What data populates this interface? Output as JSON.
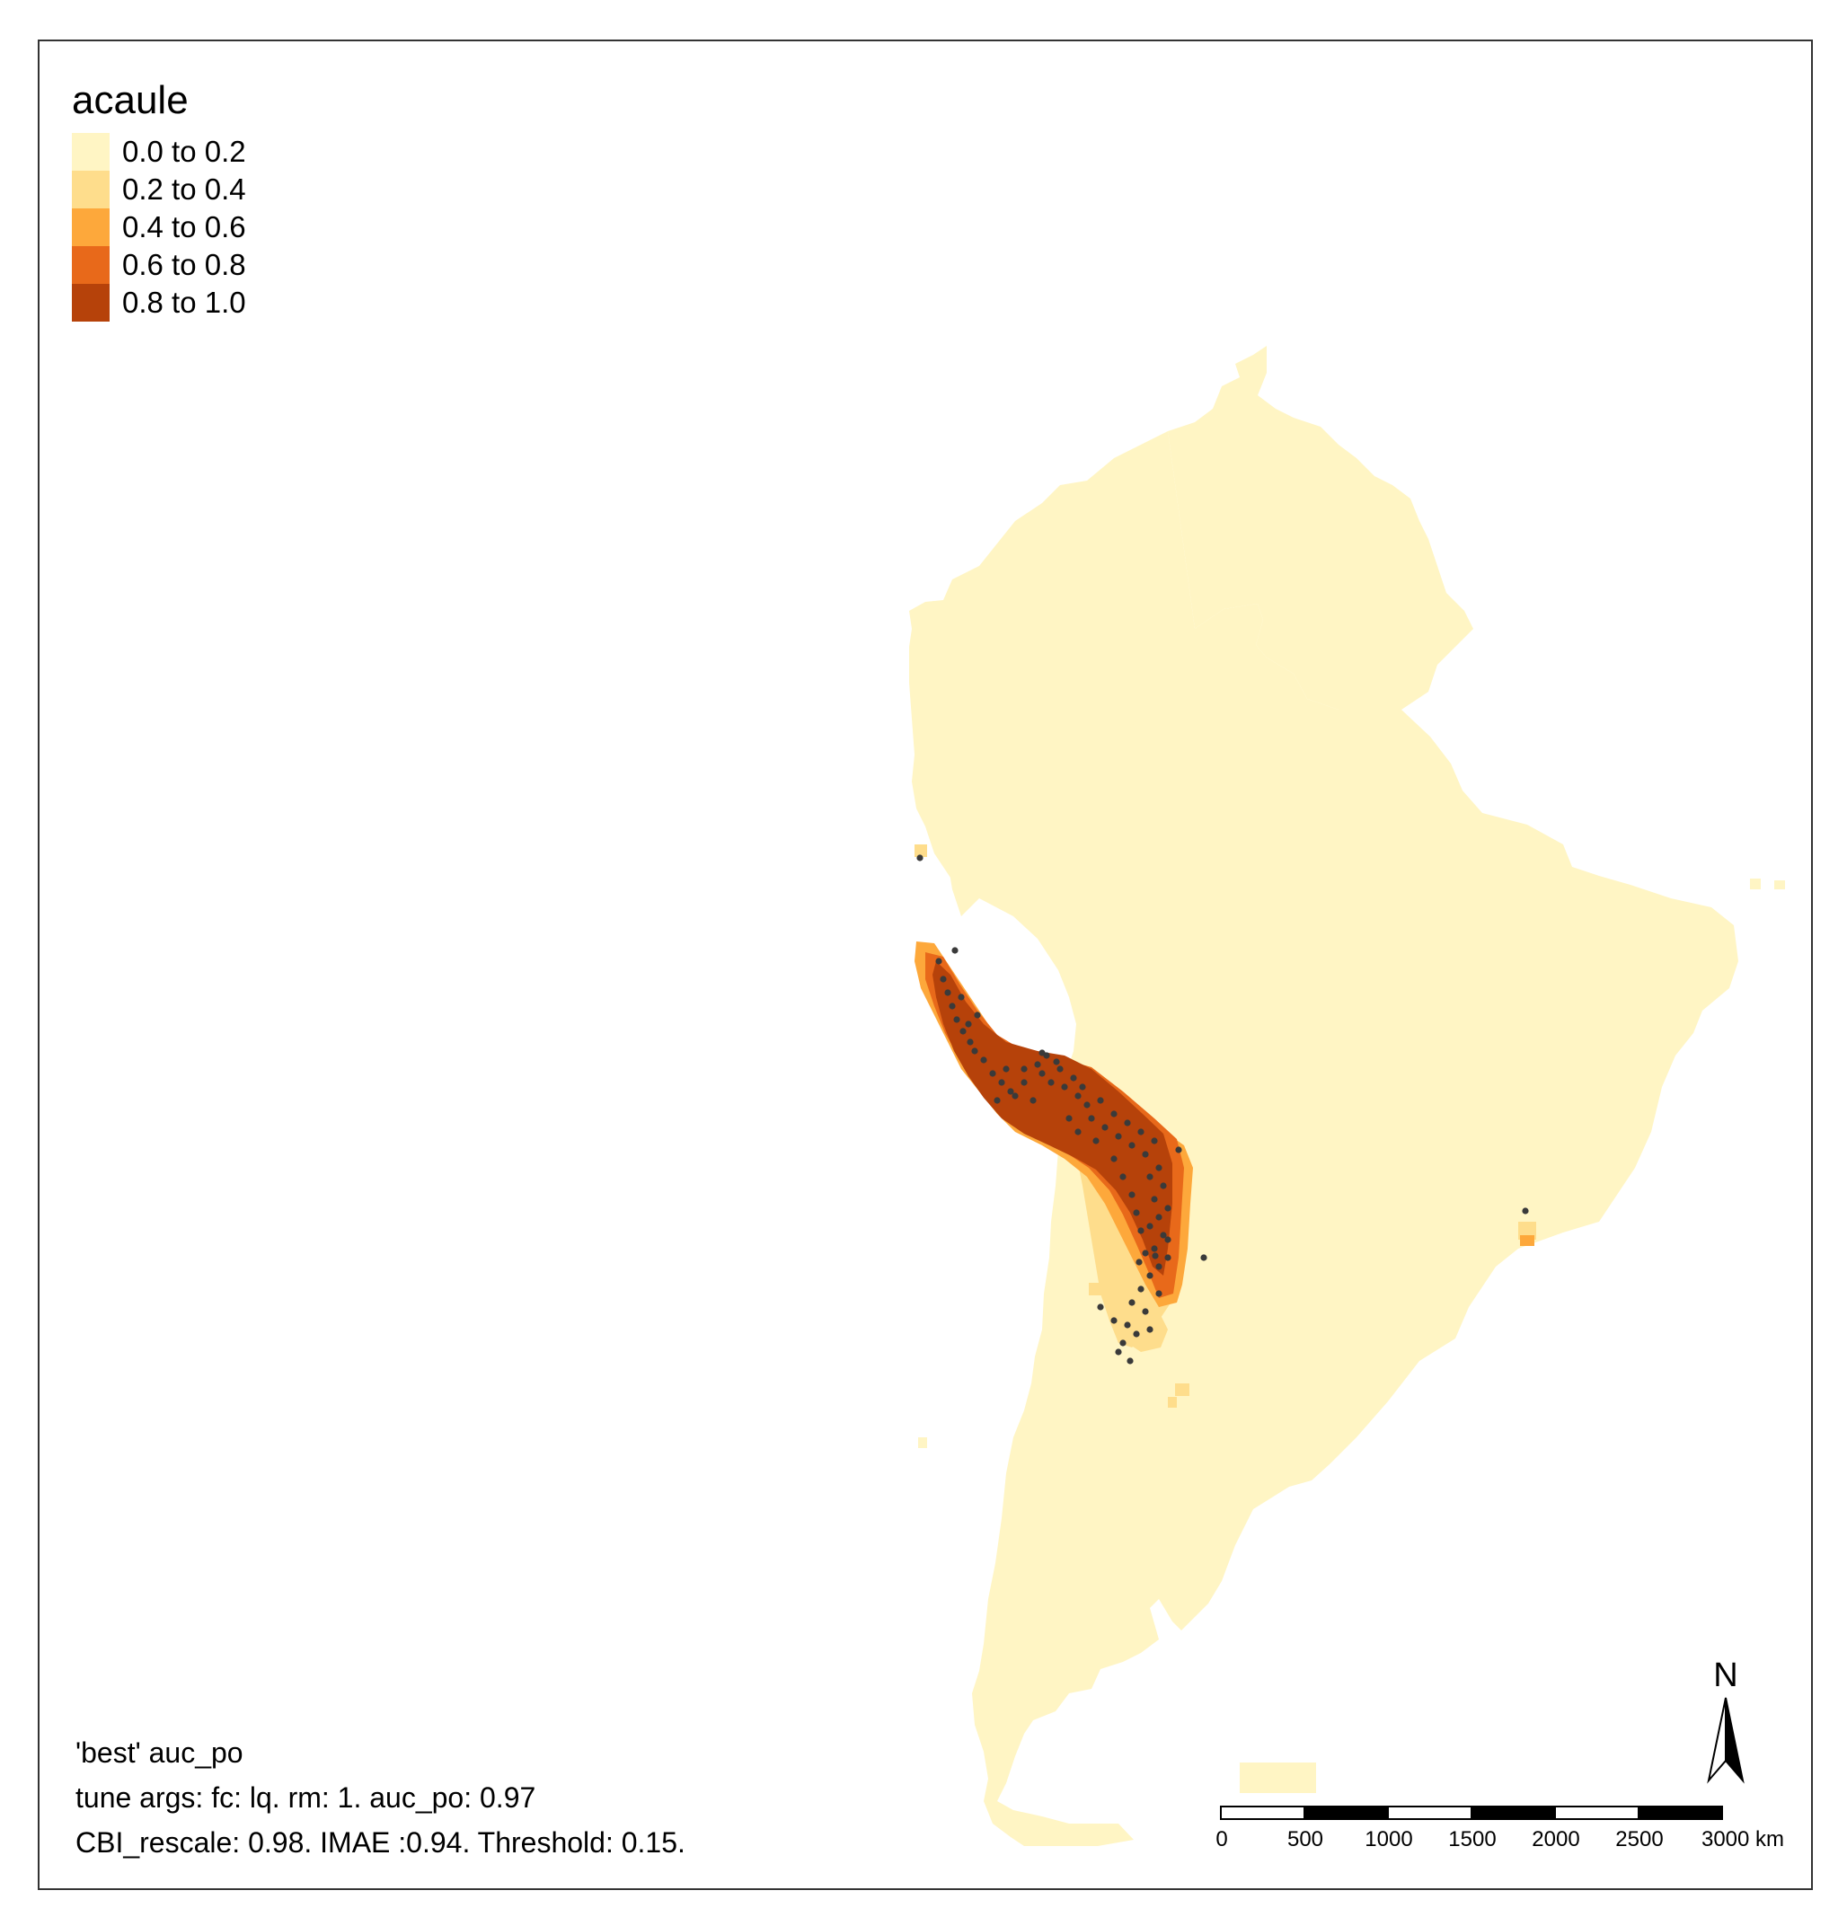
{
  "legend": {
    "title": "acaule",
    "classes": [
      {
        "label": "0.0 to 0.2",
        "color": "#FFF5C4"
      },
      {
        "label": "0.2 to 0.4",
        "color": "#FEDD8C"
      },
      {
        "label": "0.4 to 0.6",
        "color": "#FDA83B"
      },
      {
        "label": "0.6 to 0.8",
        "color": "#E8691A"
      },
      {
        "label": "0.8 to 1.0",
        "color": "#B6420A"
      }
    ]
  },
  "caption": {
    "line1": "'best' auc_po",
    "line2": "tune args: fc: lq. rm: 1. auc_po: 0.97",
    "line3": "CBI_rescale: 0.98. IMAE :0.94. Threshold: 0.15."
  },
  "scale_bar": {
    "ticks": [
      "0",
      "500",
      "1000",
      "1500",
      "2000",
      "2500",
      "3000 km"
    ]
  },
  "north_arrow": {
    "label": "N"
  },
  "colors": {
    "occurrence_point": "#3a3a3a",
    "frame": "#333333"
  }
}
